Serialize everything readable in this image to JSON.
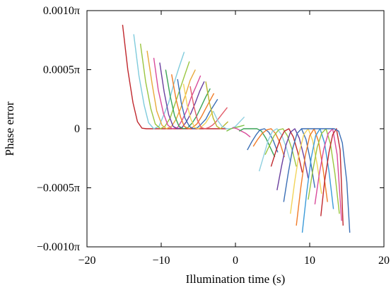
{
  "chart_data": {
    "type": "line",
    "title": "",
    "xlabel": "Illumination time (s)",
    "ylabel": "Phase error",
    "xlim": [
      -20,
      20
    ],
    "ylim": [
      -0.001,
      0.001
    ],
    "grid": false,
    "legend": "none",
    "x_ticks": [
      {
        "value": -20,
        "label": "−20"
      },
      {
        "value": -10,
        "label": "−10"
      },
      {
        "value": 0,
        "label": "0"
      },
      {
        "value": 10,
        "label": "10"
      },
      {
        "value": 20,
        "label": "20"
      }
    ],
    "y_ticks": [
      {
        "value": 0.001,
        "label": "0.0010π"
      },
      {
        "value": 0.0005,
        "label": "0.0005π"
      },
      {
        "value": 0,
        "label": "0"
      },
      {
        "value": -0.0005,
        "label": "−0.0005π"
      },
      {
        "value": -0.001,
        "label": "−0.0010π"
      }
    ],
    "series": [
      {
        "color": "#c0272d",
        "x": [
          -15.2,
          -14.5,
          -13.8,
          -13.2,
          -12.6,
          -12.0,
          -11.0,
          -10.0,
          -9.0,
          -7.0,
          -5.0,
          -3.0,
          -1.2
        ],
        "y": [
          0.00088,
          0.0005,
          0.00022,
          6e-05,
          5e-06,
          0,
          0,
          0,
          0,
          0,
          0,
          0,
          0
        ]
      },
      {
        "color": "#7fcbdc",
        "x": [
          -13.7,
          -13.0,
          -12.3,
          -11.7,
          -11.0,
          -10.3,
          -9.7,
          -9.0,
          -8.3,
          -7.6,
          -6.9
        ],
        "y": [
          0.0008,
          0.00045,
          0.0002,
          5e-05,
          0,
          2e-05,
          0.00011,
          0.00022,
          0.00038,
          0.00052,
          0.00065
        ]
      },
      {
        "color": "#9ac53f",
        "x": [
          -12.8,
          -12.1,
          -11.4,
          -10.8,
          -10.1,
          -9.5,
          -8.8,
          -8.2,
          -7.5,
          -6.8,
          -6.2
        ],
        "y": [
          0.00072,
          0.0004,
          0.00017,
          4e-05,
          0,
          2e-05,
          9e-05,
          0.0002,
          0.00033,
          0.00046,
          0.00057
        ]
      },
      {
        "color": "#e8a93a",
        "x": [
          -11.9,
          -11.2,
          -10.6,
          -9.9,
          -9.3,
          -8.6,
          -8.0,
          -7.4,
          -6.7,
          -6.1,
          -5.4
        ],
        "y": [
          0.00066,
          0.00037,
          0.00015,
          3e-05,
          0,
          2e-05,
          8e-05,
          0.00017,
          0.00029,
          0.00041,
          0.0005
        ]
      },
      {
        "color": "#d94a9a",
        "x": [
          -11.0,
          -10.4,
          -9.7,
          -9.1,
          -8.5,
          -7.8,
          -7.2,
          -6.6,
          -6.0,
          -5.3,
          -4.7
        ],
        "y": [
          0.0006,
          0.00033,
          0.00013,
          3e-05,
          0,
          1e-05,
          7e-05,
          0.00015,
          0.00026,
          0.00036,
          0.00045
        ]
      },
      {
        "color": "#6a3f9e",
        "x": [
          -10.2,
          -9.6,
          -9.0,
          -8.4,
          -7.8,
          -7.2,
          -6.6,
          -6.0,
          -5.4,
          -4.8,
          -4.2
        ],
        "y": [
          0.00056,
          0.00031,
          0.00012,
          2e-05,
          0,
          1e-05,
          6e-05,
          0.00013,
          0.00022,
          0.00032,
          0.0004
        ]
      },
      {
        "color": "#3aa457",
        "x": [
          -9.4,
          -8.8,
          -8.2,
          -7.6,
          -7.0,
          -6.4,
          -5.8,
          -5.2,
          -4.6,
          -4.0,
          -3.4
        ],
        "y": [
          0.0005,
          0.00028,
          0.00011,
          2e-05,
          0,
          1e-05,
          5e-05,
          0.00011,
          0.00019,
          0.00027,
          0.00034
        ]
      },
      {
        "color": "#f07b28",
        "x": [
          -8.6,
          -8.0,
          -7.4,
          -6.9,
          -6.3,
          -5.8,
          -5.2,
          -4.6,
          -4.1,
          -3.5,
          -2.9
        ],
        "y": [
          0.00046,
          0.00025,
          0.0001,
          2e-05,
          0,
          1e-05,
          4e-05,
          0.0001,
          0.00016,
          0.00023,
          0.0003
        ]
      },
      {
        "color": "#3b6fb6",
        "x": [
          -7.8,
          -7.3,
          -6.8,
          -6.2,
          -5.7,
          -5.1,
          -4.6,
          -4.0,
          -3.5,
          -2.9,
          -2.4
        ],
        "y": [
          0.00042,
          0.00022,
          9e-05,
          2e-05,
          0,
          1e-05,
          4e-05,
          8e-05,
          0.00014,
          0.0002,
          0.00025
        ]
      },
      {
        "color": "#f2d45a",
        "x": [
          -7.0,
          -6.5,
          -6.0,
          -5.5,
          -5.0,
          -4.5,
          -4.0,
          -3.5,
          -3.0
        ],
        "y": [
          0.00038,
          0.0002,
          8e-05,
          1e-05,
          0,
          2e-05,
          5e-05,
          0.0001,
          0.00015
        ]
      },
      {
        "color": "#e35d6a",
        "x": [
          -6.1,
          -5.6,
          -5.1,
          -4.6,
          -4.1,
          -3.6,
          -3.1,
          -2.6,
          -2.1,
          -1.6,
          -1.1
        ],
        "y": [
          0.00036,
          0.00019,
          7e-05,
          1e-05,
          0,
          1e-05,
          3e-05,
          6e-05,
          0.0001,
          0.00014,
          0.00018
        ]
      },
      {
        "color": "#b9b62e",
        "x": [
          -4.0,
          -3.5,
          -3.0,
          -2.5,
          -2.0,
          -1.5,
          -1.0
        ],
        "y": [
          0.0004,
          0.00022,
          9e-05,
          2e-05,
          0,
          3e-05,
          6e-05
        ]
      },
      {
        "color": "#8fd0e0",
        "x": [
          -3.0,
          -2.4,
          -1.8,
          -1.2,
          -0.6,
          0.0,
          0.6,
          1.2
        ],
        "y": [
          0.00015,
          7e-05,
          2e-05,
          0,
          0,
          2e-05,
          6e-05,
          0.0001
        ]
      },
      {
        "color": "#7ac043",
        "x": [
          -1.2,
          -0.6,
          0.0,
          0.6,
          1.2
        ],
        "y": [
          -2e-05,
          0,
          1e-05,
          2e-05,
          3e-05
        ]
      },
      {
        "color": "#d94a9a",
        "x": [
          -0.4,
          0.2,
          0.8,
          1.4,
          2.0
        ],
        "y": [
          1e-05,
          0,
          -2e-05,
          -4e-05,
          -7e-05
        ]
      },
      {
        "color": "#3aa457",
        "x": [
          0.5,
          1.1,
          1.7,
          2.3,
          2.9,
          3.5,
          4.1,
          4.7,
          5.3
        ],
        "y": [
          -2e-05,
          0,
          0,
          0,
          0,
          -2e-05,
          -8e-05,
          -0.00016,
          -0.00024
        ]
      },
      {
        "color": "#3b6fb6",
        "x": [
          1.6,
          2.2,
          2.8,
          3.3,
          3.9,
          4.5,
          5.1,
          5.7
        ],
        "y": [
          -0.00018,
          -0.00011,
          -5e-05,
          -1e-05,
          0,
          -3e-05,
          -0.0001,
          -0.0002
        ]
      },
      {
        "color": "#f07b28",
        "x": [
          2.4,
          3.0,
          3.6,
          4.2,
          4.8,
          5.4,
          6.0,
          6.6
        ],
        "y": [
          -0.00015,
          -9e-05,
          -4e-05,
          -1e-05,
          0,
          -4e-05,
          -0.00012,
          -0.00024
        ]
      },
      {
        "color": "#8fd0e0",
        "x": [
          3.2,
          3.8,
          4.4,
          5.0,
          5.6,
          6.2,
          6.8,
          7.4
        ],
        "y": [
          -0.00036,
          -0.00023,
          -0.0001,
          -2e-05,
          0,
          -5e-05,
          -0.00015,
          -0.00028
        ]
      },
      {
        "color": "#9ac53f",
        "x": [
          4.0,
          4.6,
          5.2,
          5.8,
          6.4,
          7.0,
          7.6,
          8.2
        ],
        "y": [
          -0.00022,
          -0.00014,
          -6e-05,
          -1e-05,
          0,
          -6e-05,
          -0.00017,
          -0.00032
        ]
      },
      {
        "color": "#c0272d",
        "x": [
          4.8,
          5.4,
          6.0,
          6.6,
          7.2,
          7.8,
          8.4,
          9.0
        ],
        "y": [
          -0.00032,
          -0.0002,
          -9e-05,
          -2e-05,
          0,
          -7e-05,
          -0.0002,
          -0.00037
        ]
      },
      {
        "color": "#6a3f9e",
        "x": [
          5.6,
          6.2,
          6.8,
          7.4,
          8.0,
          8.6,
          9.2,
          9.8
        ],
        "y": [
          -0.00052,
          -0.00032,
          -0.00014,
          -3e-05,
          0,
          -8e-05,
          -0.00023,
          -0.00042
        ]
      },
      {
        "color": "#3b6fb6",
        "x": [
          6.5,
          7.1,
          7.7,
          8.3,
          8.9,
          9.5,
          10.1,
          10.7
        ],
        "y": [
          -0.00062,
          -0.00038,
          -0.00017,
          -4e-05,
          0,
          -9e-05,
          -0.00027,
          -0.0005
        ]
      },
      {
        "color": "#f2d45a",
        "x": [
          7.4,
          8.0,
          8.6,
          9.2,
          9.8,
          10.4,
          11.0,
          11.6
        ],
        "y": [
          -0.00072,
          -0.00044,
          -0.0002,
          -5e-05,
          0,
          -0.0001,
          -0.0003,
          -0.00055
        ]
      },
      {
        "color": "#f07b28",
        "x": [
          8.2,
          8.8,
          9.4,
          10.0,
          10.6,
          11.2,
          11.8,
          12.4
        ],
        "y": [
          -0.00082,
          -0.0005,
          -0.00023,
          -6e-05,
          0,
          -0.00011,
          -0.00034,
          -0.00062
        ]
      },
      {
        "color": "#3a9ad9",
        "x": [
          9.0,
          9.6,
          10.2,
          10.8,
          11.4,
          12.0,
          12.6,
          13.2
        ],
        "y": [
          -0.00088,
          -0.00054,
          -0.00025,
          -6e-05,
          0,
          -0.00012,
          -0.00036,
          -0.00068
        ]
      },
      {
        "color": "#9ac53f",
        "x": [
          9.8,
          10.4,
          11.0,
          11.6,
          12.2,
          12.8,
          13.4,
          14.0
        ],
        "y": [
          -0.0006,
          -0.00036,
          -0.00016,
          -4e-05,
          0,
          -0.00013,
          -0.00038,
          -0.00072
        ]
      },
      {
        "color": "#d94a9a",
        "x": [
          10.7,
          11.3,
          11.9,
          12.5,
          13.1,
          13.7,
          14.3
        ],
        "y": [
          -0.00064,
          -0.00038,
          -0.00017,
          -4e-05,
          0,
          -0.00022,
          -0.00078
        ]
      },
      {
        "color": "#c0272d",
        "x": [
          11.5,
          12.0,
          12.6,
          13.1,
          13.6,
          14.1,
          14.5
        ],
        "y": [
          -0.00074,
          -0.00045,
          -0.0002,
          -5e-05,
          0,
          -0.00018,
          -0.00082
        ]
      },
      {
        "color": "#3b6fb6",
        "x": [
          8.9,
          9.5,
          10.1,
          10.6,
          11.2,
          11.7,
          12.3,
          12.8,
          13.3,
          13.9,
          14.4,
          15.0,
          15.4
        ],
        "y": [
          0,
          0,
          0,
          0,
          0,
          0,
          0,
          0,
          0,
          -2e-05,
          -0.00012,
          -0.00045,
          -0.00088
        ]
      }
    ]
  }
}
